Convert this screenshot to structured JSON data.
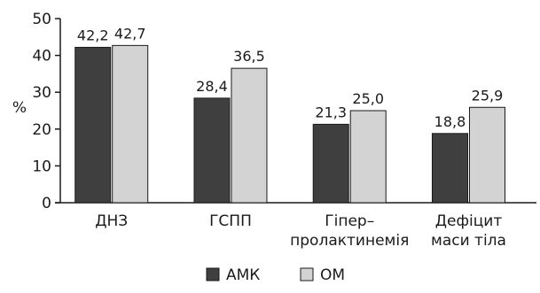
{
  "chart_data": {
    "type": "bar",
    "ylabel": "%",
    "xlabel": "",
    "ylim": [
      0,
      50
    ],
    "yticks": [
      0,
      10,
      20,
      30,
      40,
      50
    ],
    "grid": false,
    "legend_position": "bottom",
    "categories": [
      [
        "ДНЗ"
      ],
      [
        "ГСПП"
      ],
      [
        "Гіпер–",
        "пролактинемія"
      ],
      [
        "Дефіцит",
        "маси тіла"
      ]
    ],
    "series": [
      {
        "name": "АМК",
        "color": "#3f3f3f",
        "values": [
          42.2,
          28.4,
          21.3,
          18.8
        ],
        "labels": [
          "42,2",
          "28,4",
          "21,3",
          "18,8"
        ]
      },
      {
        "name": "ОМ",
        "color": "#d3d3d3",
        "values": [
          42.7,
          36.5,
          25.0,
          25.9
        ],
        "labels": [
          "42,7",
          "36,5",
          "25,0",
          "25,9"
        ]
      }
    ]
  }
}
